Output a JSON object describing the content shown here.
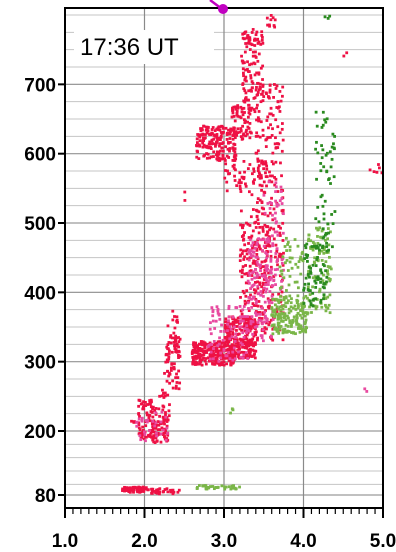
{
  "chart_data": {
    "type": "scatter",
    "annotation": "17:36 UT",
    "xlim": [
      1.0,
      5.0
    ],
    "ylim": [
      80,
      800
    ],
    "x_ticks": [
      1.0,
      2.0,
      3.0,
      4.0,
      5.0
    ],
    "x_tick_labels": [
      "1.0",
      "2.0",
      "3.0",
      "4.0",
      "5.0"
    ],
    "y_ticks": [
      80,
      200,
      300,
      400,
      500,
      600,
      700
    ],
    "y_tick_labels": [
      "80",
      "200",
      "300",
      "400",
      "500",
      "600",
      "700"
    ],
    "grid": true,
    "series": [
      {
        "color": "#ee1144",
        "clusters": [
          {
            "x": [
              1.72,
              2.05
            ],
            "y": [
              85,
              95
            ],
            "n": 70
          },
          {
            "x": [
              2.05,
              2.45
            ],
            "y": [
              82,
              92
            ],
            "n": 30
          },
          {
            "x": [
              1.75,
              1.95
            ],
            "y": [
              208,
              222
            ],
            "n": 6
          },
          {
            "x": [
              1.92,
              2.15
            ],
            "y": [
              185,
              245
            ],
            "n": 80
          },
          {
            "x": [
              2.1,
              2.3
            ],
            "y": [
              178,
              215
            ],
            "n": 50
          },
          {
            "x": [
              2.18,
              2.32
            ],
            "y": [
              215,
              260
            ],
            "n": 25
          },
          {
            "x": [
              2.25,
              2.45
            ],
            "y": [
              260,
              335
            ],
            "n": 60
          },
          {
            "x": [
              2.28,
              2.42
            ],
            "y": [
              310,
              375
            ],
            "n": 25
          },
          {
            "x": [
              2.6,
              3.15
            ],
            "y": [
              295,
              330
            ],
            "n": 260
          },
          {
            "x": [
              3.0,
              3.4
            ],
            "y": [
              305,
              365
            ],
            "n": 260
          },
          {
            "x": [
              3.2,
              3.58
            ],
            "y": [
              340,
              520
            ],
            "n": 170
          },
          {
            "x": [
              3.4,
              3.75
            ],
            "y": [
              330,
              700
            ],
            "n": 230
          },
          {
            "x": [
              3.0,
              3.55
            ],
            "y": [
              540,
              590
            ],
            "n": 60
          },
          {
            "x": [
              2.65,
              3.15
            ],
            "y": [
              590,
              640
            ],
            "n": 170
          },
          {
            "x": [
              3.1,
              3.35
            ],
            "y": [
              620,
              670
            ],
            "n": 70
          },
          {
            "x": [
              3.22,
              3.5
            ],
            "y": [
              660,
              780
            ],
            "n": 120
          },
          {
            "x": [
              3.52,
              3.65
            ],
            "y": [
              780,
              800
            ],
            "n": 10
          },
          {
            "x": [
              4.8,
              5.0
            ],
            "y": [
              570,
              590
            ],
            "n": 6
          },
          {
            "x": [
              2.45,
              2.55
            ],
            "y": [
              530,
              545
            ],
            "n": 2
          },
          {
            "x": [
              4.45,
              4.55
            ],
            "y": [
              740,
              748
            ],
            "n": 2
          }
        ]
      },
      {
        "color": "#e84aa0",
        "clusters": [
          {
            "x": [
              2.8,
              3.3
            ],
            "y": [
              300,
              380
            ],
            "n": 90
          },
          {
            "x": [
              3.3,
              3.62
            ],
            "y": [
              330,
              480
            ],
            "n": 120
          },
          {
            "x": [
              3.5,
              3.75
            ],
            "y": [
              400,
              560
            ],
            "n": 70
          },
          {
            "x": [
              1.9,
              2.3
            ],
            "y": [
              180,
              230
            ],
            "n": 30
          },
          {
            "x": [
              4.7,
              4.8
            ],
            "y": [
              255,
              262
            ],
            "n": 2
          }
        ]
      },
      {
        "color": "#7ab648",
        "clusters": [
          {
            "x": [
              2.65,
              3.2
            ],
            "y": [
              91,
              98
            ],
            "n": 35
          },
          {
            "x": [
              3.6,
              4.05
            ],
            "y": [
              340,
              395
            ],
            "n": 170
          },
          {
            "x": [
              3.7,
              4.0
            ],
            "y": [
              400,
              480
            ],
            "n": 40
          },
          {
            "x": [
              4.05,
              4.35
            ],
            "y": [
              370,
              500
            ],
            "n": 100
          },
          {
            "x": [
              3.05,
              3.15
            ],
            "y": [
              225,
              232
            ],
            "n": 3
          }
        ]
      },
      {
        "color": "#2a8a1f",
        "clusters": [
          {
            "x": [
              4.0,
              4.3
            ],
            "y": [
              380,
              470
            ],
            "n": 70
          },
          {
            "x": [
              4.15,
              4.4
            ],
            "y": [
              460,
              660
            ],
            "n": 60
          },
          {
            "x": [
              4.25,
              4.35
            ],
            "y": [
              790,
              800
            ],
            "n": 3
          }
        ]
      }
    ]
  }
}
